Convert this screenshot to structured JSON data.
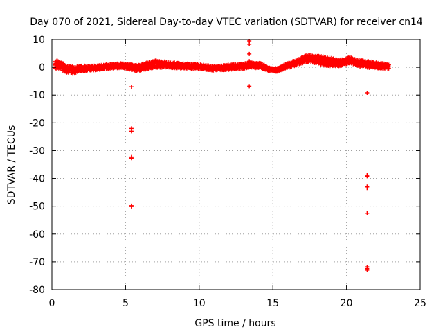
{
  "chart_data": {
    "type": "scatter",
    "title": "Day 070 of 2021, Sidereal Day-to-day VTEC variation (SDTVAR) for receiver cn14",
    "xlabel": "GPS time / hours",
    "ylabel": "SDTVAR / TECUs",
    "xlim": [
      0,
      25
    ],
    "ylim": [
      -80,
      10
    ],
    "xticks": [
      0,
      5,
      10,
      15,
      20,
      25
    ],
    "yticks": [
      10,
      0,
      -10,
      -20,
      -30,
      -40,
      -50,
      -60,
      -70,
      -80
    ],
    "grid": true,
    "marker": "+",
    "series_color": "#ff0000",
    "band": {
      "x_start": 0.2,
      "x_end": 22.9,
      "center": [
        [
          0.2,
          1.0
        ],
        [
          0.5,
          0.8
        ],
        [
          1.0,
          -0.6
        ],
        [
          1.5,
          -1.0
        ],
        [
          2.0,
          -0.4
        ],
        [
          3.0,
          -0.2
        ],
        [
          4.0,
          0.4
        ],
        [
          4.8,
          0.6
        ],
        [
          5.3,
          0.1
        ],
        [
          5.8,
          -0.3
        ],
        [
          6.5,
          0.6
        ],
        [
          7.0,
          1.2
        ],
        [
          8.0,
          0.8
        ],
        [
          9.0,
          0.5
        ],
        [
          10.0,
          0.3
        ],
        [
          11.0,
          -0.4
        ],
        [
          12.0,
          0.0
        ],
        [
          13.0,
          0.4
        ],
        [
          13.5,
          0.8
        ],
        [
          14.2,
          0.6
        ],
        [
          14.8,
          -0.8
        ],
        [
          15.3,
          -1.0
        ],
        [
          15.8,
          0.2
        ],
        [
          16.5,
          1.5
        ],
        [
          17.3,
          3.2
        ],
        [
          17.8,
          3.0
        ],
        [
          18.5,
          2.2
        ],
        [
          19.5,
          1.5
        ],
        [
          20.2,
          2.6
        ],
        [
          20.8,
          1.5
        ],
        [
          21.5,
          1.0
        ],
        [
          22.3,
          0.6
        ],
        [
          22.9,
          0.3
        ]
      ],
      "halfwidth": [
        [
          0.2,
          1.6
        ],
        [
          1.0,
          1.3
        ],
        [
          3.0,
          0.8
        ],
        [
          5.0,
          0.9
        ],
        [
          6.0,
          1.2
        ],
        [
          7.0,
          1.3
        ],
        [
          9.0,
          0.9
        ],
        [
          11.0,
          0.8
        ],
        [
          13.0,
          1.0
        ],
        [
          14.0,
          1.0
        ],
        [
          15.0,
          0.6
        ],
        [
          16.0,
          0.9
        ],
        [
          17.5,
          1.3
        ],
        [
          18.5,
          1.7
        ],
        [
          19.5,
          1.2
        ],
        [
          20.5,
          1.1
        ],
        [
          21.5,
          1.2
        ],
        [
          22.9,
          0.9
        ]
      ]
    },
    "outliers": [
      {
        "x": 5.4,
        "y": -7.0
      },
      {
        "x": 5.4,
        "y": -22.0
      },
      {
        "x": 5.4,
        "y": -23.0
      },
      {
        "x": 5.4,
        "y": -32.3
      },
      {
        "x": 5.4,
        "y": -32.7
      },
      {
        "x": 5.4,
        "y": -49.8
      },
      {
        "x": 5.4,
        "y": -50.1
      },
      {
        "x": 13.4,
        "y": 9.5
      },
      {
        "x": 13.4,
        "y": 8.3
      },
      {
        "x": 13.4,
        "y": 4.8
      },
      {
        "x": 13.4,
        "y": 2.2
      },
      {
        "x": 13.4,
        "y": -6.8
      },
      {
        "x": 21.4,
        "y": -9.2
      },
      {
        "x": 21.4,
        "y": -38.8
      },
      {
        "x": 21.4,
        "y": -39.2
      },
      {
        "x": 21.4,
        "y": -42.9
      },
      {
        "x": 21.4,
        "y": -43.4
      },
      {
        "x": 21.4,
        "y": -52.5
      },
      {
        "x": 21.4,
        "y": -71.8
      },
      {
        "x": 21.4,
        "y": -72.4
      },
      {
        "x": 21.4,
        "y": -73.0
      }
    ]
  }
}
